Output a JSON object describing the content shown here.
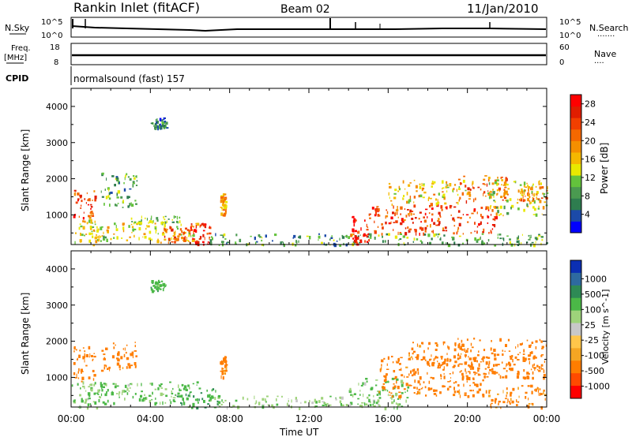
{
  "header": {
    "station": "Rankin Inlet (fitACF)",
    "beam": "Beam 02",
    "date": "11/Jan/2010"
  },
  "nsky": {
    "label": "N.Sky",
    "ticks": [
      "10^5",
      "10^0"
    ]
  },
  "nsearch": {
    "label": "N.Search",
    "ticks": [
      "10^5",
      "10^0"
    ]
  },
  "freq": {
    "label_top": "Freq.",
    "label_bottom": "[MHz]",
    "ticks": [
      "18",
      "8"
    ]
  },
  "nave": {
    "label": "Nave",
    "ticks": [
      "60",
      "0"
    ]
  },
  "cpid": {
    "label": "CPID",
    "value": "normalsound (fast) 157"
  },
  "colors": {
    "power": [
      "#0000ff",
      "#1b4aa8",
      "#2e7d4f",
      "#4a9a50",
      "#63c23c",
      "#e8e800",
      "#f5b800",
      "#f58f00",
      "#f56800",
      "#f23f00",
      "#e01d00",
      "#ff0000"
    ],
    "velocity": [
      "#ff0000",
      "#ff4a00",
      "#ff7d00",
      "#f5a623",
      "#ffc64a",
      "#c8c8c8",
      "#9ed37a",
      "#4bb847",
      "#2e8a55",
      "#2e6aa0",
      "#0b2fb3"
    ]
  },
  "chart_data": [
    {
      "type": "heatmap",
      "name": "power",
      "title": "",
      "xlabel": "",
      "ylabel": "Slant Range [km]",
      "xlim": [
        0,
        24
      ],
      "ylim": [
        180,
        4500
      ],
      "x_ticks": [
        "00:00",
        "04:00",
        "08:00",
        "12:00",
        "16:00",
        "20:00",
        "00:00"
      ],
      "y_ticks": [
        1000,
        2000,
        3000,
        4000
      ],
      "colorbar": {
        "label": "Power [dB]",
        "ticks": [
          "4",
          "8",
          "12",
          "16",
          "20",
          "24",
          "28"
        ],
        "range": [
          0,
          30
        ]
      },
      "regions": [
        {
          "t0": 0.0,
          "t1": 1.8,
          "r0": 180,
          "r1": 900,
          "value": 14
        },
        {
          "t0": 0.1,
          "t1": 1.2,
          "r0": 900,
          "r1": 1700,
          "value": 24
        },
        {
          "t0": 1.5,
          "t1": 3.3,
          "r0": 1200,
          "r1": 2200,
          "value": 9
        },
        {
          "t0": 1.0,
          "t1": 6.5,
          "r0": 300,
          "r1": 800,
          "value": 15
        },
        {
          "t0": 3.0,
          "t1": 5.5,
          "r0": 800,
          "r1": 1000,
          "value": 10
        },
        {
          "t0": 4.5,
          "t1": 6.0,
          "r0": 250,
          "r1": 700,
          "value": 22
        },
        {
          "t0": 6.0,
          "t1": 7.0,
          "r0": 180,
          "r1": 800,
          "value": 27
        },
        {
          "t0": 4.0,
          "t1": 4.8,
          "r0": 3400,
          "r1": 3700,
          "value": 7
        },
        {
          "t0": 7.0,
          "t1": 14.0,
          "r0": 180,
          "r1": 500,
          "value": 8
        },
        {
          "t0": 7.5,
          "t1": 7.8,
          "r0": 1000,
          "r1": 1600,
          "value": 18
        },
        {
          "t0": 14.0,
          "t1": 24.0,
          "r0": 180,
          "r1": 500,
          "value": 10
        },
        {
          "t0": 14.0,
          "t1": 15.0,
          "r0": 180,
          "r1": 1000,
          "value": 27
        },
        {
          "t0": 15.0,
          "t1": 21.5,
          "r0": 500,
          "r1": 1300,
          "value": 24
        },
        {
          "t0": 16.0,
          "t1": 20.0,
          "r0": 1300,
          "r1": 2000,
          "value": 16
        },
        {
          "t0": 19.5,
          "t1": 22.0,
          "r0": 1400,
          "r1": 2100,
          "value": 22
        },
        {
          "t0": 21.0,
          "t1": 24.0,
          "r0": 1000,
          "r1": 2000,
          "value": 14
        },
        {
          "t0": 22.5,
          "t1": 24.0,
          "r0": 1400,
          "r1": 1800,
          "value": 20
        }
      ]
    },
    {
      "type": "heatmap",
      "name": "velocity",
      "title": "",
      "xlabel": "Time UT",
      "ylabel": "Slant Range [km]",
      "xlim": [
        0,
        24
      ],
      "ylim": [
        180,
        4500
      ],
      "x_ticks": [
        "00:00",
        "04:00",
        "08:00",
        "12:00",
        "16:00",
        "20:00",
        "00:00"
      ],
      "y_ticks": [
        1000,
        2000,
        3000,
        4000
      ],
      "colorbar": {
        "label": "Velocity [m s^-1]",
        "ticks": [
          "1000",
          "500",
          "100",
          "25",
          "-25",
          "-100",
          "-500",
          "-1000"
        ]
      },
      "regions": [
        {
          "t0": 0.0,
          "t1": 1.8,
          "r0": 180,
          "r1": 900,
          "value": 100
        },
        {
          "t0": 0.1,
          "t1": 1.2,
          "r0": 900,
          "r1": 1900,
          "value": -300
        },
        {
          "t0": 1.5,
          "t1": 3.3,
          "r0": 1200,
          "r1": 2000,
          "value": -200
        },
        {
          "t0": 1.0,
          "t1": 6.5,
          "r0": 300,
          "r1": 900,
          "value": 150
        },
        {
          "t0": 4.0,
          "t1": 4.8,
          "r0": 3400,
          "r1": 3700,
          "value": 200
        },
        {
          "t0": 5.0,
          "t1": 7.5,
          "r0": 180,
          "r1": 700,
          "value": 250
        },
        {
          "t0": 7.5,
          "t1": 7.8,
          "r0": 1000,
          "r1": 1600,
          "value": -150
        },
        {
          "t0": 7.0,
          "t1": 14.0,
          "r0": 180,
          "r1": 500,
          "value": 60
        },
        {
          "t0": 14.0,
          "t1": 17.0,
          "r0": 180,
          "r1": 1000,
          "value": 120
        },
        {
          "t0": 15.5,
          "t1": 21.0,
          "r0": 500,
          "r1": 1600,
          "value": -250
        },
        {
          "t0": 17.0,
          "t1": 20.0,
          "r0": 1400,
          "r1": 2000,
          "value": -200
        },
        {
          "t0": 19.5,
          "t1": 24.0,
          "r0": 1000,
          "r1": 2100,
          "value": -300
        },
        {
          "t0": 21.0,
          "t1": 24.0,
          "r0": 180,
          "r1": 800,
          "value": -150
        }
      ]
    }
  ]
}
